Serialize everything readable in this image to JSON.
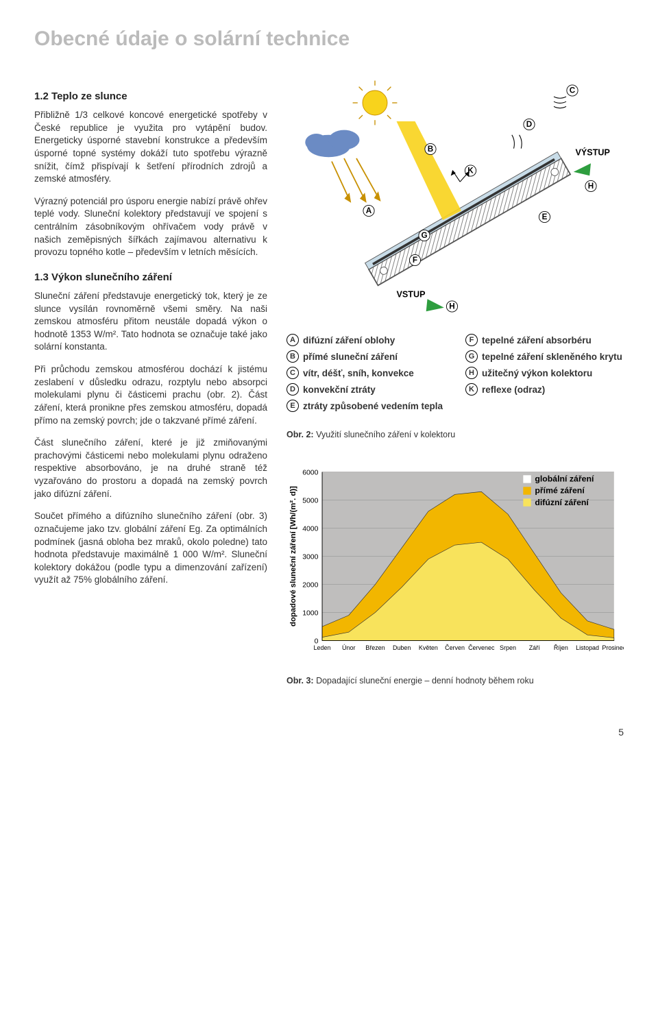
{
  "title": "Obecné údaje o solární technice",
  "section12_heading": "1.2 Teplo ze slunce",
  "p1": "Přibližně 1/3 celkové koncové energetické spotřeby v České republice je využita pro vytápění budov. Energeticky úsporné stavební konstrukce a především úsporné topné systémy dokáží tuto spotřebu výrazně snížit, čímž přispívají k šetření přírodních zdrojů a zemské atmosféry.",
  "p2": "Výrazný potenciál pro úsporu energie nabízí právě ohřev teplé vody. Sluneční kolektory představují ve spojení s centrálním zásobníkovým ohřívačem vody právě v našich zeměpisných šířkách zajímavou alternativu k provozu topného kotle – především v letních měsících.",
  "section13_heading": "1.3 Výkon slunečního záření",
  "p3": "Sluneční záření představuje energetický tok, který je ze slunce vysílán rovnoměrně všemi směry. Na naši zemskou atmosféru přitom neustále dopadá výkon o hodnotě 1353 W/m². Tato hodnota se označuje také jako solární konstanta.",
  "p4": "Při průchodu zemskou atmosférou dochází k jistému zeslabení v důsledku odrazu, rozptylu nebo absorpci molekulami plynu či částicemi prachu (obr. 2). Část záření, která pronikne přes zemskou atmosféru, dopadá přímo na zemský povrch; jde o takzvané přímé záření.",
  "p5a": "Část slunečního záření, které je již zmiňovanými prachovými částicemi nebo molekulami plynu odraženo respektive absorbováno, je na druhé straně též vyzařováno do prostoru a dopadá na zemský povrch jako difúzní záření.",
  "p5b": "Součet přímého a difúzního slunečního záření (obr. 3) označujeme jako tzv. globální záření Eg. Za optimálních podmínek (jasná obloha bez mraků, okolo poledne) tato hodnota představuje maximálně 1 000 W/m². Sluneční kolektory dokážou (podle typu a dimenzování zařízení) využít až 75% globálního záření.",
  "page_number": "5",
  "diagram1": {
    "output_label": "VÝSTUP",
    "input_label": "VSTUP",
    "colors": {
      "sun": "#f8d31c",
      "cloud": "#6b8bc4",
      "beam": "#f8d31c",
      "panel_frame": "#888",
      "background": "#ffffff"
    }
  },
  "legend_left": [
    {
      "l": "A",
      "t": "difúzní záření oblohy"
    },
    {
      "l": "B",
      "t": "přímé sluneční záření"
    },
    {
      "l": "C",
      "t": "vítr, déšť, sníh, konvekce"
    },
    {
      "l": "D",
      "t": "konvekční ztráty"
    },
    {
      "l": "E",
      "t": "ztráty způsobené vedením tepla"
    }
  ],
  "legend_right": [
    {
      "l": "F",
      "t": "tepelné záření absorbéru"
    },
    {
      "l": "G",
      "t": "tepelné záření skleněného krytu"
    },
    {
      "l": "H",
      "t": "užitečný výkon kolektoru"
    },
    {
      "l": "K",
      "t": "reflexe (odraz)"
    }
  ],
  "fig2_caption_label": "Obr. 2:",
  "fig2_caption": "Využití slunečního záření v kolektoru",
  "chart": {
    "type": "area",
    "ylabel": "dopadové sluneční záření [Wh/(m². d)]",
    "ylim": [
      0,
      6000
    ],
    "ytick_step": 1000,
    "months": [
      "Leden",
      "Únor",
      "Březen",
      "Duben",
      "Květen",
      "Červen",
      "Červenec",
      "Srpen",
      "Září",
      "Říjen",
      "Listopad",
      "Prosinec"
    ],
    "series": {
      "global": [
        500,
        900,
        2000,
        3300,
        4600,
        5200,
        5300,
        4500,
        3100,
        1700,
        700,
        400
      ],
      "direct": [
        120,
        300,
        1000,
        1900,
        2900,
        3400,
        3500,
        2900,
        1800,
        800,
        200,
        100
      ]
    },
    "colors": {
      "global_fill": "#f2b600",
      "direct_fill": "#f8e35c",
      "background": "#bfbebd",
      "grid": "#7a7a7a"
    },
    "legend": [
      {
        "label": "globální záření",
        "color": "#ffffff"
      },
      {
        "label": "přímé záření",
        "color": "#f2b600"
      },
      {
        "label": "difúzní záření",
        "color": "#f8e35c"
      }
    ]
  },
  "fig3_caption_label": "Obr. 3:",
  "fig3_caption": "Dopadající sluneční energie – denní hodnoty během roku"
}
